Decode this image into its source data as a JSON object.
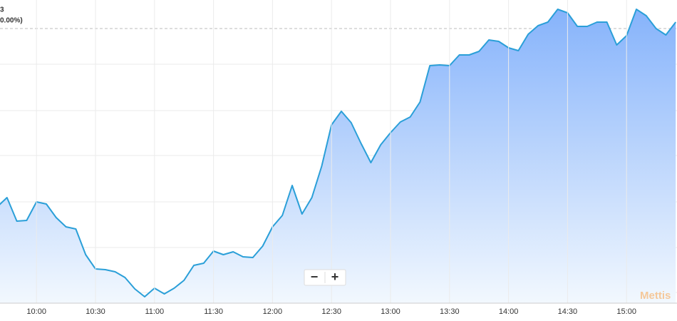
{
  "chart_data": {
    "type": "area",
    "header": {
      "price": "3",
      "change": "0.00%)"
    },
    "categories": [
      null,
      null,
      null,
      null,
      "10:00",
      null,
      null,
      null,
      null,
      null,
      "10:30",
      null,
      null,
      null,
      null,
      null,
      "11:00",
      null,
      null,
      null,
      null,
      null,
      "11:30",
      null,
      null,
      null,
      null,
      null,
      "12:00",
      null,
      null,
      null,
      null,
      null,
      "12:30",
      null,
      null,
      null,
      null,
      null,
      "13:00",
      null,
      null,
      null,
      null,
      null,
      "13:30",
      null,
      null,
      null,
      null,
      null,
      "14:00",
      null,
      null,
      null,
      null,
      null,
      "14:30",
      null,
      null,
      null,
      null,
      null,
      "15:00",
      null,
      null,
      null,
      null,
      null
    ],
    "values": [
      160,
      173,
      140,
      141,
      167,
      164,
      145,
      132,
      129,
      93,
      73,
      72,
      69,
      61,
      45,
      34,
      46,
      38,
      46,
      57,
      78,
      81,
      98,
      93,
      97,
      90,
      89,
      105,
      132,
      148,
      190,
      150,
      173,
      217,
      275,
      294,
      278,
      249,
      222,
      247,
      264,
      279,
      286,
      307,
      358,
      359,
      358,
      373,
      373,
      378,
      394,
      392,
      383,
      379,
      402,
      414,
      419,
      437,
      432,
      413,
      413,
      419,
      419,
      387,
      400,
      437,
      428,
      410,
      401,
      419
    ],
    "ylim": [
      0,
      450
    ],
    "reference_line": 410,
    "color": "#2a9fd8",
    "zoom_out": "−",
    "zoom_in": "+",
    "watermark": "Mettis"
  }
}
